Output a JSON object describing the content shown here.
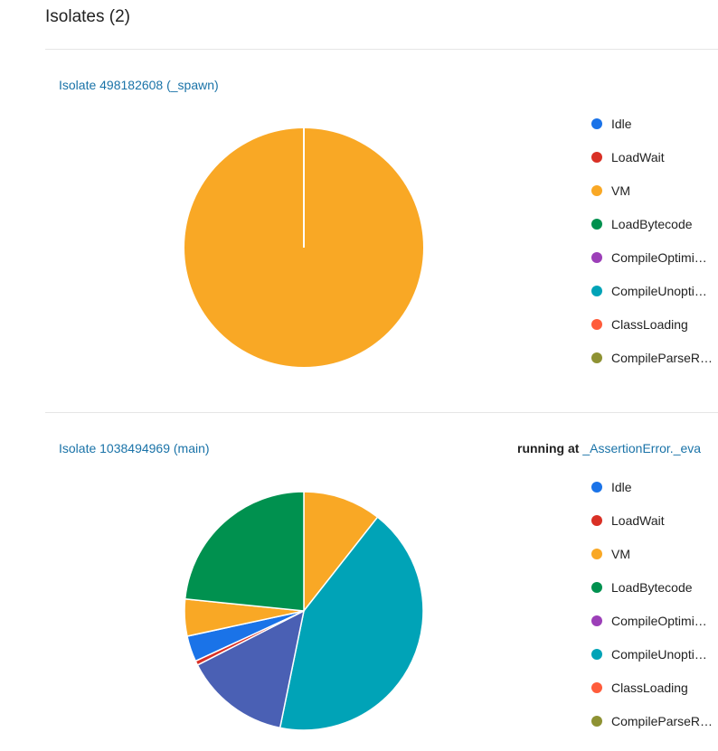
{
  "page": {
    "title": "Isolates (2)"
  },
  "running_label": "running at",
  "legend_colors": {
    "Idle": "#1a73e8",
    "LoadWait": "#d93025",
    "VM": "#f9a825",
    "LoadBytecode": "#00914f",
    "CompileOptimi…": "#9c3fb8",
    "CompileUnopti…": "#00a3b7",
    "ClassLoading": "#ff5c3b",
    "CompileParseR…": "#8e9233",
    "Other": "#4a60b4"
  },
  "isolates": [
    {
      "name": "Isolate 498182608 (_spawn)",
      "running_at": "",
      "legend": [
        "Idle",
        "LoadWait",
        "VM",
        "LoadBytecode",
        "CompileOptimi…",
        "CompileUnopti…",
        "ClassLoading",
        "CompileParseR…"
      ],
      "chart_data": {
        "type": "pie",
        "slices": [
          {
            "name": "VM",
            "value": 100
          }
        ]
      }
    },
    {
      "name": "Isolate 1038494969 (main)",
      "running_at": "_AssertionError._eva",
      "legend": [
        "Idle",
        "LoadWait",
        "VM",
        "LoadBytecode",
        "CompileOptimi…",
        "CompileUnopti…",
        "ClassLoading",
        "CompileParseR…"
      ],
      "chart_data": {
        "type": "pie",
        "slices": [
          {
            "name": "VM",
            "value": 10.6
          },
          {
            "name": "CompileUnopti…",
            "value": 42.6
          },
          {
            "name": "Other",
            "value": 14.3
          },
          {
            "name": "LoadWait",
            "value": 0.6
          },
          {
            "name": "Idle",
            "value": 3.5
          },
          {
            "name": "VM",
            "value": 5.0
          },
          {
            "name": "LoadBytecode",
            "value": 23.4
          }
        ]
      }
    }
  ]
}
